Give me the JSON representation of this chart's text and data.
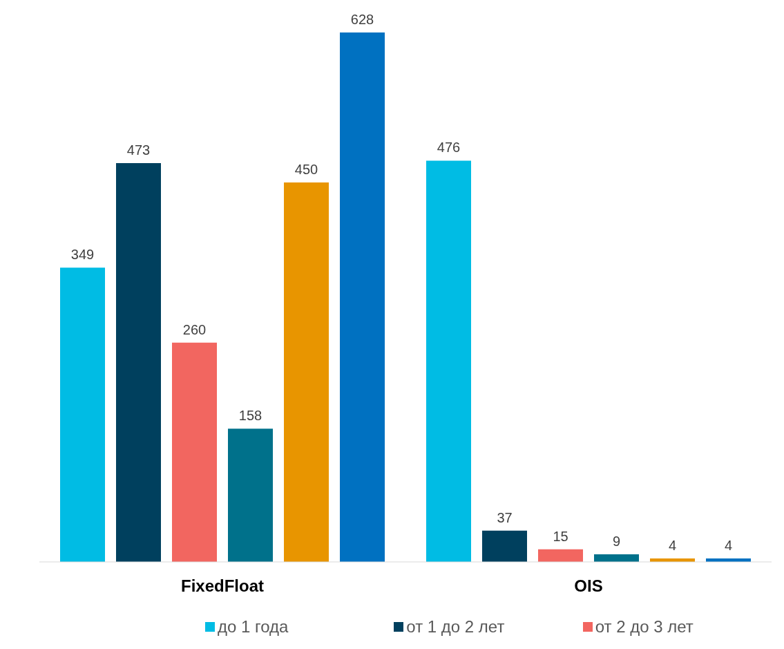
{
  "chart_data": {
    "type": "bar",
    "categories": [
      "FixedFloat",
      "OIS"
    ],
    "series": [
      {
        "name": "до 1 года",
        "color": "#00bce4",
        "values": [
          349,
          476
        ]
      },
      {
        "name": "от 1 до 2 лет",
        "color": "#00405e",
        "values": [
          473,
          37
        ]
      },
      {
        "name": "от 2 до 3 лет",
        "color": "#f26660",
        "values": [
          260,
          15
        ]
      },
      {
        "color": "#00718b",
        "values": [
          158,
          9
        ]
      },
      {
        "color": "#e89500",
        "values": [
          450,
          4
        ]
      },
      {
        "color": "#0071c1",
        "values": [
          628,
          4
        ]
      }
    ],
    "data_labels": true,
    "grid": false,
    "legend": "bottom"
  }
}
